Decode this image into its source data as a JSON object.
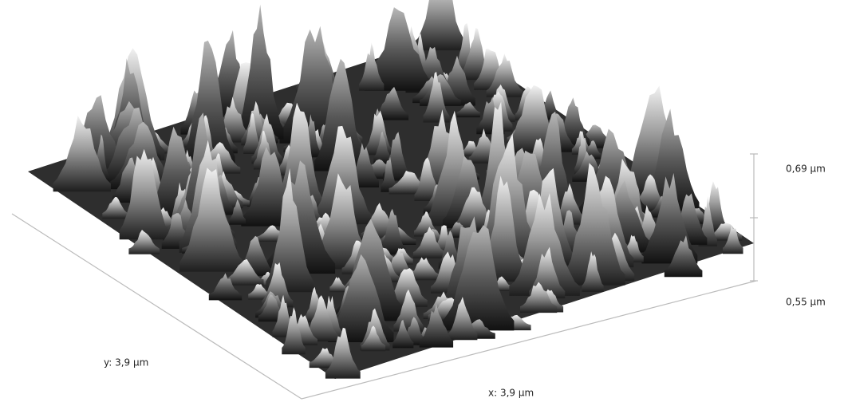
{
  "z_axis": {
    "max_label": "0,69 µm",
    "min_label": "0,55 µm"
  },
  "y_axis": {
    "label": "y: 3,9 µm"
  },
  "x_axis": {
    "label": "x: 3,9 µm"
  }
}
